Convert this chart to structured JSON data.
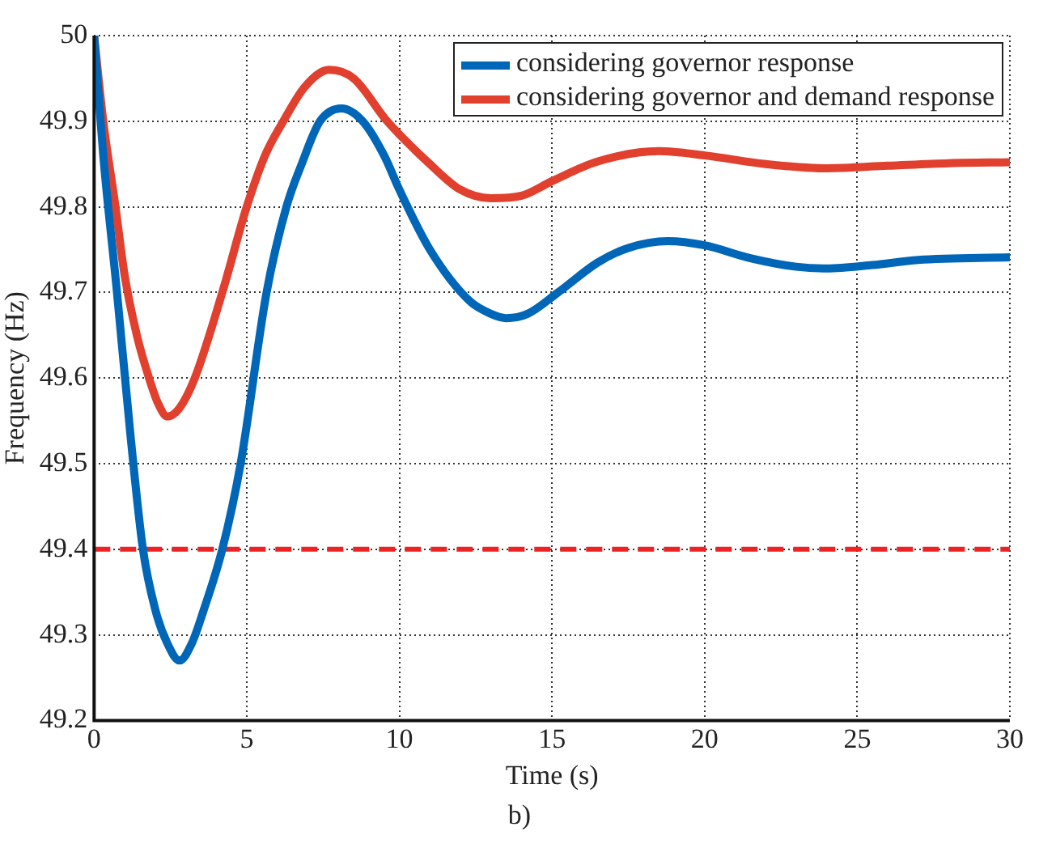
{
  "chart_data": {
    "type": "line",
    "xlabel": "Time (s)",
    "ylabel": "Frequency (Hz)",
    "annotations": [
      "b)"
    ],
    "xlim": [
      0,
      30
    ],
    "xticks": [
      0,
      5,
      10,
      15,
      20,
      25,
      30
    ],
    "ylim": [
      49.2,
      50
    ],
    "yticks": [
      49.2,
      49.3,
      49.4,
      49.5,
      49.6,
      49.7,
      49.8,
      49.9,
      50
    ],
    "grid": true,
    "legend": "top right",
    "line_style": "solid",
    "marker": "none",
    "ref_lines": [
      {
        "axis": "y",
        "value": 49.4,
        "color": "#ee2222",
        "line_style": "dashed"
      }
    ],
    "series": [
      {
        "name": "considering governor response",
        "color": "#0066b8",
        "x": [
          0,
          0.3,
          0.75,
          1.2,
          1.6,
          2.0,
          2.4,
          2.8,
          3.2,
          3.6,
          4.2,
          4.8,
          5.65,
          6.3,
          6.8,
          7.4,
          8.1,
          8.8,
          9.5,
          10,
          11,
          12.3,
          13,
          13.5,
          14.2,
          15.2,
          16.5,
          17.5,
          18.8,
          20,
          21.5,
          23,
          24,
          25.5,
          27,
          30
        ],
        "values": [
          50,
          49.86,
          49.7,
          49.53,
          49.4,
          49.33,
          49.29,
          49.27,
          49.29,
          49.33,
          49.4,
          49.5,
          49.7,
          49.8,
          49.85,
          49.9,
          49.915,
          49.9,
          49.86,
          49.82,
          49.75,
          49.69,
          49.675,
          49.67,
          49.675,
          49.7,
          49.735,
          49.752,
          49.76,
          49.755,
          49.74,
          49.73,
          49.728,
          49.732,
          49.738,
          49.741
        ]
      },
      {
        "name": "considering governor and demand response",
        "color": "#e2402f",
        "x": [
          0,
          0.3,
          0.7,
          1.0,
          1.4,
          1.8,
          2.1,
          2.4,
          2.8,
          3.3,
          4.2,
          5,
          5.6,
          6.2,
          6.9,
          7.7,
          8.5,
          9.6,
          11,
          12,
          13,
          14,
          15,
          16.5,
          18.5,
          20,
          22,
          24,
          26,
          28,
          30
        ],
        "values": [
          50,
          49.9,
          49.8,
          49.72,
          49.65,
          49.6,
          49.57,
          49.555,
          49.565,
          49.6,
          49.7,
          49.8,
          49.86,
          49.9,
          49.94,
          49.96,
          49.95,
          49.9,
          49.85,
          49.82,
          49.81,
          49.813,
          49.83,
          49.853,
          49.865,
          49.86,
          49.85,
          49.845,
          49.848,
          49.851,
          49.852
        ]
      }
    ]
  }
}
